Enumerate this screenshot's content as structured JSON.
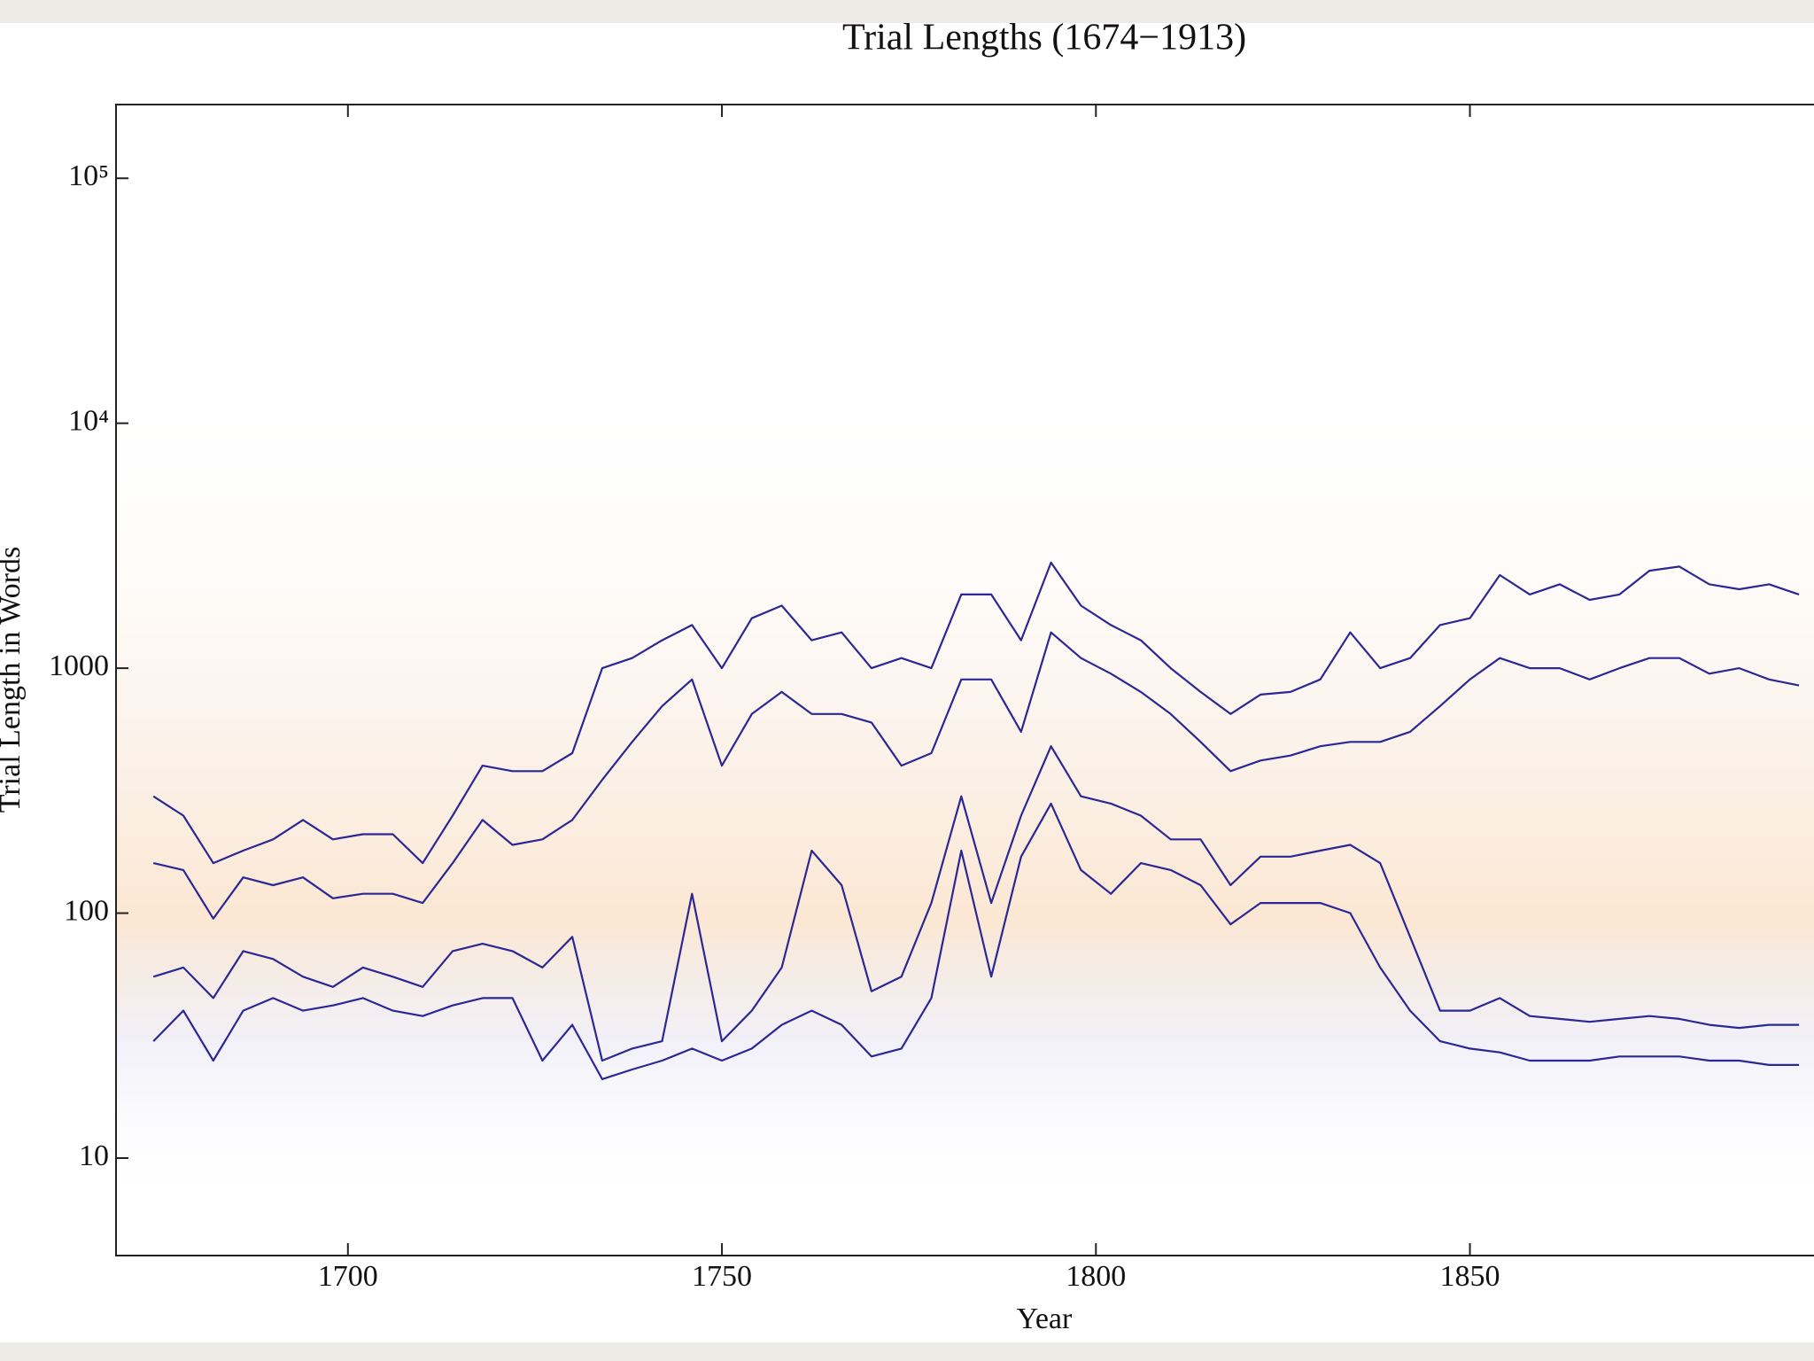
{
  "chart_data": {
    "type": "line",
    "title": "Trial Lengths (1674−1913)",
    "x_label": "Year",
    "y_label": "Trial Length in Words",
    "log_y": true,
    "xlim": [
      1669,
      1896
    ],
    "xticks": [
      1700,
      1750,
      1800,
      1850
    ],
    "ylim": [
      4,
      200000
    ],
    "yticks": [
      10,
      100,
      1000,
      {
        "value": 10000,
        "label": "10⁴"
      },
      {
        "value": 100000,
        "label": "10⁵"
      }
    ],
    "x": [
      1674,
      1678,
      1682,
      1686,
      1690,
      1694,
      1698,
      1702,
      1706,
      1710,
      1714,
      1718,
      1722,
      1726,
      1730,
      1734,
      1738,
      1742,
      1746,
      1750,
      1754,
      1758,
      1762,
      1766,
      1770,
      1774,
      1778,
      1782,
      1786,
      1790,
      1794,
      1798,
      1802,
      1806,
      1810,
      1814,
      1818,
      1822,
      1826,
      1830,
      1834,
      1838,
      1842,
      1846,
      1850,
      1854,
      1858,
      1862,
      1866,
      1870,
      1874,
      1878,
      1882,
      1886,
      1890,
      1894
    ],
    "series": [
      {
        "color": "#2b2794",
        "values": [
          300,
          250,
          160,
          180,
          200,
          240,
          200,
          210,
          210,
          160,
          250,
          400,
          380,
          380,
          450,
          1000,
          1100,
          1300,
          1500,
          1000,
          1600,
          1800,
          1300,
          1400,
          1000,
          1100,
          1000,
          2000,
          2000,
          1300,
          2700,
          1800,
          1500,
          1300,
          1000,
          800,
          650,
          780,
          800,
          900,
          1400,
          1000,
          1100,
          1500,
          1600,
          2400,
          2000,
          2200,
          1900,
          2000,
          2500,
          2600,
          2200,
          2100,
          2200,
          2000
        ]
      },
      {
        "color": "#2b2794",
        "values": [
          160,
          150,
          95,
          140,
          130,
          140,
          115,
          120,
          120,
          110,
          160,
          240,
          190,
          200,
          240,
          350,
          500,
          700,
          900,
          400,
          650,
          800,
          650,
          650,
          600,
          400,
          450,
          900,
          900,
          550,
          1400,
          1100,
          950,
          800,
          650,
          500,
          380,
          420,
          440,
          480,
          500,
          500,
          550,
          700,
          900,
          1100,
          1000,
          1000,
          900,
          1000,
          1100,
          1100,
          950,
          1000,
          900,
          850
        ]
      },
      {
        "color": "#2b2794",
        "values": [
          55,
          60,
          45,
          70,
          65,
          55,
          50,
          60,
          55,
          50,
          70,
          75,
          70,
          60,
          80,
          25,
          28,
          30,
          120,
          30,
          40,
          60,
          180,
          130,
          48,
          55,
          110,
          300,
          110,
          250,
          480,
          300,
          280,
          250,
          200,
          200,
          130,
          170,
          170,
          180,
          190,
          160,
          80,
          40,
          40,
          45,
          38,
          37,
          36,
          37,
          38,
          37,
          35,
          34,
          35,
          35
        ]
      },
      {
        "color": "#2b2794",
        "values": [
          30,
          40,
          25,
          40,
          45,
          40,
          42,
          45,
          40,
          38,
          42,
          45,
          45,
          25,
          35,
          21,
          23,
          25,
          28,
          25,
          28,
          35,
          40,
          35,
          26,
          28,
          45,
          180,
          55,
          170,
          280,
          150,
          120,
          160,
          150,
          130,
          90,
          110,
          110,
          110,
          100,
          60,
          40,
          30,
          28,
          27,
          25,
          25,
          25,
          26,
          26,
          26,
          25,
          25,
          24,
          24
        ]
      }
    ]
  }
}
